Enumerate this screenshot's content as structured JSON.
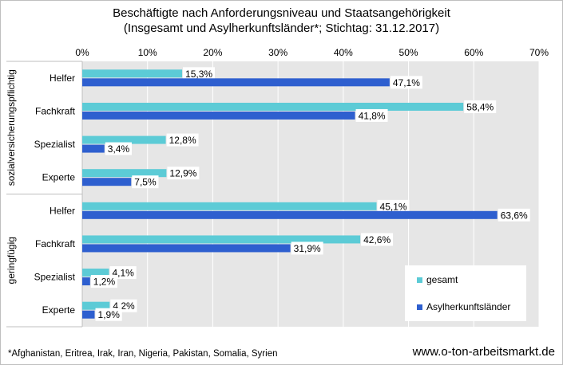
{
  "title_line1": "Beschäftigte nach Anforderungsniveau  und  Staatsangehörigkeit",
  "title_line2": "(Insgesamt  und  Asylherkunftsländer*;   Stichtag: 31.12.2017)",
  "footnote": "*Afghanistan, Eritrea, Irak, Iran, Nigeria, Pakistan, Somalia, Syrien",
  "source": "www.o-ton-arbeitsmarkt.de",
  "colors": {
    "gesamt": "#5ccbd6",
    "asyl": "#2e5fcf",
    "plot_bg": "#e6e6e6",
    "grid": "#ffffff"
  },
  "chart_data": {
    "type": "bar",
    "orientation": "horizontal",
    "xlim": [
      0,
      70
    ],
    "x_ticks": [
      "0%",
      "10%",
      "20%",
      "30%",
      "40%",
      "50%",
      "60%",
      "70%"
    ],
    "x_tick_values": [
      0,
      10,
      20,
      30,
      40,
      50,
      60,
      70
    ],
    "groups": [
      {
        "label": "sozialversicherungspflichtig",
        "categories": [
          "Helfer",
          "Fachkraft",
          "Spezialist",
          "Experte"
        ]
      },
      {
        "label": "geringfügig",
        "categories": [
          "Helfer",
          "Fachkraft",
          "Spezialist",
          "Experte"
        ]
      }
    ],
    "series": [
      {
        "name": "gesamt",
        "values": [
          15.3,
          58.4,
          12.8,
          12.9,
          45.1,
          42.6,
          4.1,
          4.2
        ],
        "labels": [
          "15,3%",
          "58,4%",
          "12,8%",
          "12,9%",
          "45,1%",
          "42,6%",
          "4,1%",
          "4,2%"
        ]
      },
      {
        "name": "Asylherkunftsländer",
        "values": [
          47.1,
          41.8,
          3.4,
          7.5,
          63.6,
          31.9,
          1.2,
          1.9
        ],
        "labels": [
          "47,1%",
          "41,8%",
          "3,4%",
          "7,5%",
          "63,6%",
          "31,9%",
          "1,2%",
          "1,9%"
        ]
      }
    ],
    "legend_position": "bottom-right",
    "grid": true
  }
}
